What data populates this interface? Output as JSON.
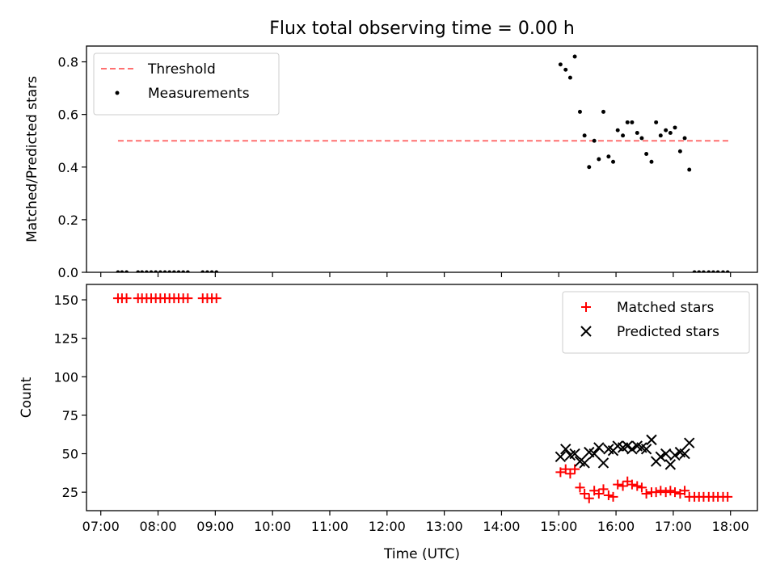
{
  "chart_data": {
    "title": "Flux total observing time = 0.00 h",
    "xlabel": "Time (UTC)",
    "xticks": [
      "07:00",
      "08:00",
      "09:00",
      "10:00",
      "11:00",
      "12:00",
      "13:00",
      "14:00",
      "15:00",
      "16:00",
      "17:00",
      "18:00"
    ],
    "xlim_hours": [
      6.75,
      18.47
    ],
    "panels": [
      {
        "id": "ratio",
        "type": "scatter",
        "ylabel": "Matched/Predicted stars",
        "ylim": [
          0,
          0.86
        ],
        "yticks": [
          0.0,
          0.2,
          0.4,
          0.6,
          0.8
        ],
        "yticklabels": [
          "0.0",
          "0.2",
          "0.4",
          "0.6",
          "0.8"
        ],
        "legend_loc": "upper-left",
        "threshold": {
          "name": "Threshold",
          "value": 0.5,
          "x_range_hours": [
            7.3,
            18.0
          ],
          "color": "#ff7070"
        },
        "series": [
          {
            "name": "Measurements",
            "marker": "dot",
            "color": "#000000",
            "x_hours": [
              7.3,
              7.37,
              7.45,
              7.65,
              7.72,
              7.8,
              7.88,
              7.96,
              8.04,
              8.12,
              8.2,
              8.28,
              8.36,
              8.44,
              8.52,
              8.78,
              8.86,
              8.94,
              9.02,
              15.03,
              15.12,
              15.2,
              15.28,
              15.37,
              15.45,
              15.53,
              15.62,
              15.7,
              15.78,
              15.87,
              15.95,
              16.03,
              16.12,
              16.2,
              16.28,
              16.37,
              16.45,
              16.53,
              16.62,
              16.7,
              16.78,
              16.87,
              16.95,
              17.03,
              17.12,
              17.2,
              17.28,
              17.37,
              17.45,
              17.53,
              17.62,
              17.7,
              17.78,
              17.87,
              17.95
            ],
            "y": [
              0,
              0,
              0,
              0,
              0,
              0,
              0,
              0,
              0,
              0,
              0,
              0,
              0,
              0,
              0,
              0,
              0,
              0,
              0,
              0.79,
              0.77,
              0.74,
              0.82,
              0.61,
              0.52,
              0.4,
              0.5,
              0.43,
              0.61,
              0.44,
              0.42,
              0.54,
              0.52,
              0.57,
              0.57,
              0.53,
              0.51,
              0.45,
              0.42,
              0.57,
              0.52,
              0.54,
              0.53,
              0.55,
              0.46,
              0.51,
              0.39,
              0,
              0,
              0,
              0,
              0,
              0,
              0,
              0
            ]
          }
        ]
      },
      {
        "id": "counts",
        "type": "scatter",
        "ylabel": "Count",
        "ylim": [
          13,
          160
        ],
        "yticks": [
          25,
          50,
          75,
          100,
          125,
          150
        ],
        "yticklabels": [
          "25",
          "50",
          "75",
          "100",
          "125",
          "150"
        ],
        "legend_loc": "upper-right",
        "series": [
          {
            "name": "Matched stars",
            "marker": "plus",
            "color": "#ff0000",
            "x_hours": [
              7.3,
              7.37,
              7.45,
              7.65,
              7.72,
              7.8,
              7.88,
              7.96,
              8.04,
              8.12,
              8.2,
              8.28,
              8.36,
              8.44,
              8.52,
              8.78,
              8.86,
              8.94,
              9.02,
              15.03,
              15.12,
              15.2,
              15.28,
              15.37,
              15.45,
              15.53,
              15.62,
              15.7,
              15.78,
              15.87,
              15.95,
              16.03,
              16.12,
              16.2,
              16.28,
              16.37,
              16.45,
              16.53,
              16.62,
              16.7,
              16.78,
              16.87,
              16.95,
              17.03,
              17.12,
              17.2,
              17.28,
              17.37,
              17.45,
              17.53,
              17.62,
              17.7,
              17.78,
              17.87,
              17.95
            ],
            "y": [
              151,
              151,
              151,
              151,
              151,
              151,
              151,
              151,
              151,
              151,
              151,
              151,
              151,
              151,
              151,
              151,
              151,
              151,
              151,
              38,
              40,
              37,
              40,
              28,
              24,
              21,
              26,
              24,
              27,
              23,
              22,
              30,
              29,
              32,
              30,
              29,
              28,
              24,
              25,
              25,
              26,
              25,
              26,
              25,
              24,
              26,
              22,
              22,
              22,
              22,
              22,
              22,
              22,
              22,
              22
            ]
          },
          {
            "name": "Predicted stars",
            "marker": "x",
            "color": "#000000",
            "x_hours": [
              15.03,
              15.12,
              15.2,
              15.28,
              15.37,
              15.45,
              15.53,
              15.62,
              15.7,
              15.78,
              15.87,
              15.95,
              16.03,
              16.12,
              16.2,
              16.28,
              16.37,
              16.45,
              16.53,
              16.62,
              16.7,
              16.78,
              16.87,
              16.95,
              17.03,
              17.12,
              17.2,
              17.28
            ],
            "y": [
              48,
              53,
              49,
              50,
              45,
              44,
              51,
              50,
              54,
              44,
              53,
              52,
              55,
              54,
              55,
              53,
              55,
              54,
              53,
              59,
              45,
              48,
              50,
              43,
              49,
              51,
              50,
              57
            ]
          }
        ]
      }
    ]
  }
}
